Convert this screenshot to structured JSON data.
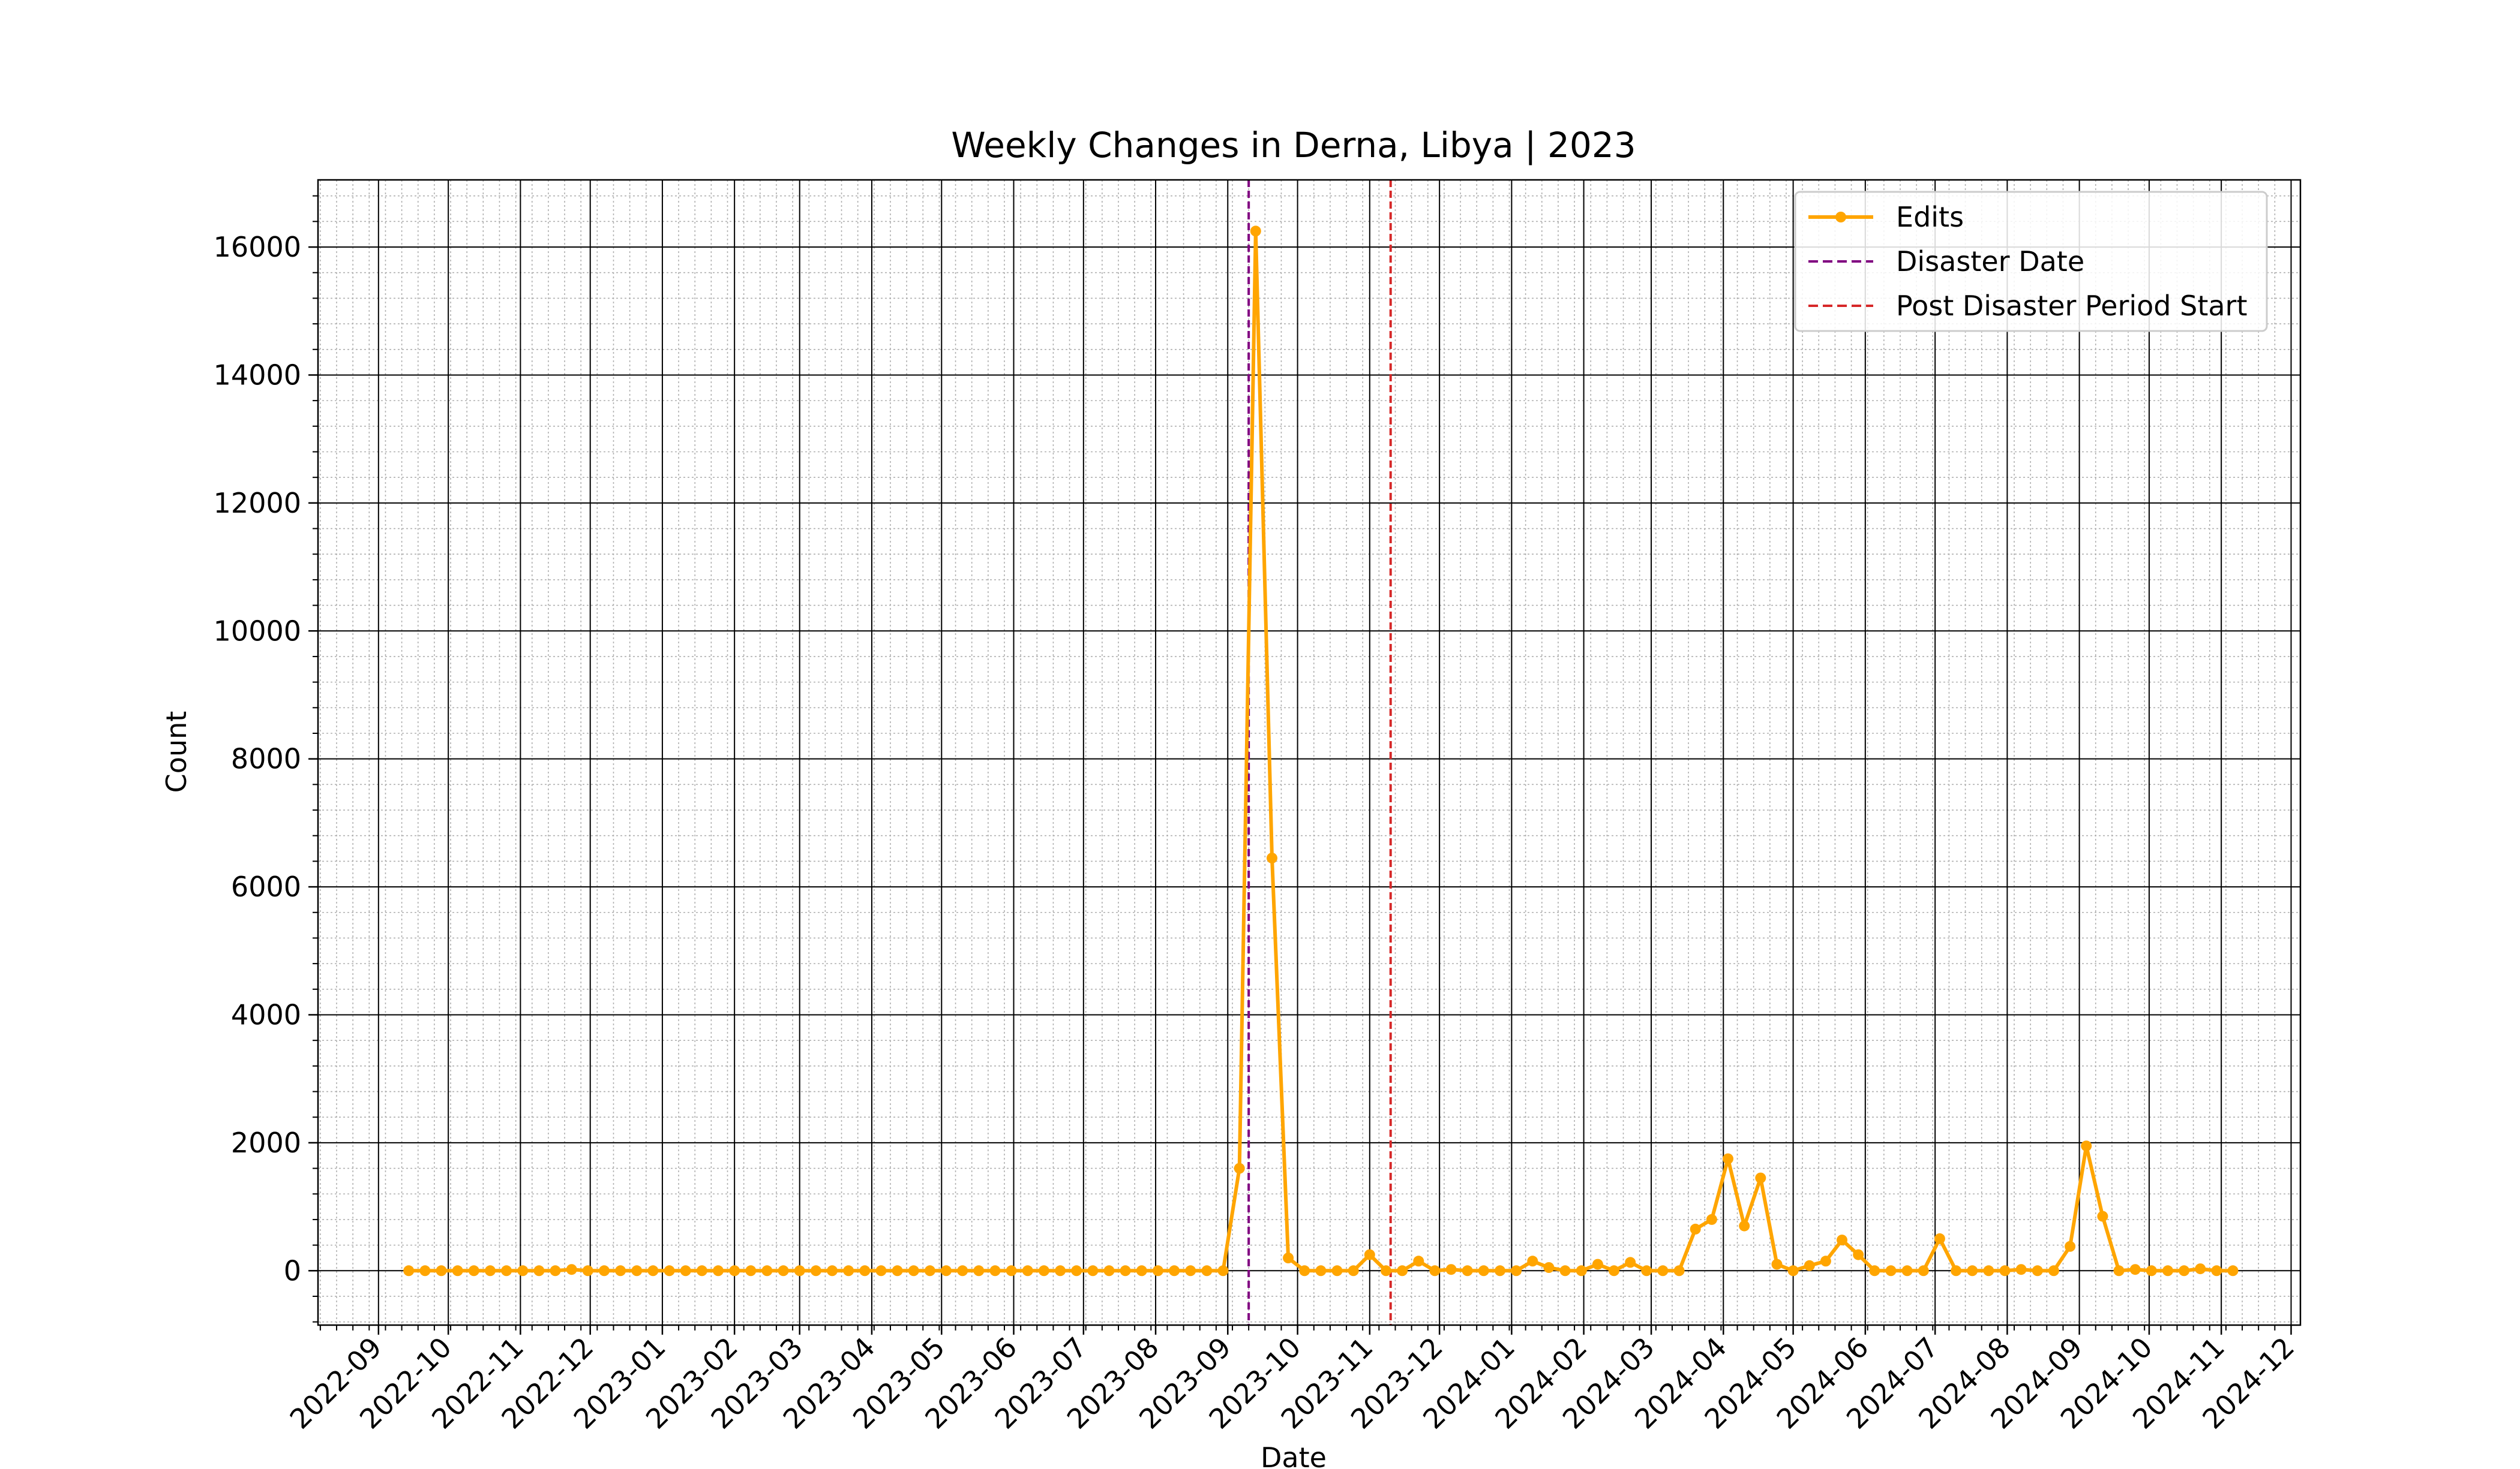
{
  "chart_data": {
    "type": "line",
    "title": "Weekly Changes in Derna, Libya | 2023",
    "xlabel": "Date",
    "ylabel": "Count",
    "x_type": "date",
    "xlim": [
      "2022-08-06",
      "2024-12-05"
    ],
    "ylim": [
      -850,
      17050
    ],
    "y_ticks": [
      0,
      2000,
      4000,
      6000,
      8000,
      10000,
      12000,
      14000,
      16000
    ],
    "x_ticks": [
      "2022-09",
      "2022-10",
      "2022-11",
      "2022-12",
      "2023-01",
      "2023-02",
      "2023-03",
      "2023-04",
      "2023-05",
      "2023-06",
      "2023-07",
      "2023-08",
      "2023-09",
      "2023-10",
      "2023-11",
      "2023-12",
      "2024-01",
      "2024-02",
      "2024-03",
      "2024-04",
      "2024-05",
      "2024-06",
      "2024-07",
      "2024-08",
      "2024-09",
      "2024-10",
      "2024-11",
      "2024-12"
    ],
    "grid": "major and minor",
    "legend_position": "upper right",
    "colors": {
      "edits": "#ffa500",
      "disaster": "#800080",
      "post_disaster": "#d62728",
      "major_grid": "#000000",
      "minor_grid": "#b0b0b0"
    },
    "series": [
      {
        "name": "Edits",
        "x": [
          "2022-09-14",
          "2022-09-21",
          "2022-09-28",
          "2022-10-05",
          "2022-10-12",
          "2022-10-19",
          "2022-10-26",
          "2022-11-02",
          "2022-11-09",
          "2022-11-16",
          "2022-11-23",
          "2022-11-30",
          "2022-12-07",
          "2022-12-14",
          "2022-12-21",
          "2022-12-28",
          "2023-01-04",
          "2023-01-11",
          "2023-01-18",
          "2023-01-25",
          "2023-02-01",
          "2023-02-08",
          "2023-02-15",
          "2023-02-22",
          "2023-03-01",
          "2023-03-08",
          "2023-03-15",
          "2023-03-22",
          "2023-03-29",
          "2023-04-05",
          "2023-04-12",
          "2023-04-19",
          "2023-04-26",
          "2023-05-03",
          "2023-05-10",
          "2023-05-17",
          "2023-05-24",
          "2023-05-31",
          "2023-06-07",
          "2023-06-14",
          "2023-06-21",
          "2023-06-28",
          "2023-07-05",
          "2023-07-12",
          "2023-07-19",
          "2023-07-26",
          "2023-08-02",
          "2023-08-09",
          "2023-08-16",
          "2023-08-23",
          "2023-08-30",
          "2023-09-06",
          "2023-09-13",
          "2023-09-20",
          "2023-09-27",
          "2023-10-04",
          "2023-10-11",
          "2023-10-18",
          "2023-10-25",
          "2023-11-01",
          "2023-11-08",
          "2023-11-15",
          "2023-11-22",
          "2023-11-29",
          "2023-12-06",
          "2023-12-13",
          "2023-12-20",
          "2023-12-27",
          "2024-01-03",
          "2024-01-10",
          "2024-01-17",
          "2024-01-24",
          "2024-01-31",
          "2024-02-07",
          "2024-02-14",
          "2024-02-21",
          "2024-02-28",
          "2024-03-06",
          "2024-03-13",
          "2024-03-20",
          "2024-03-27",
          "2024-04-03",
          "2024-04-10",
          "2024-04-17",
          "2024-04-24",
          "2024-05-01",
          "2024-05-08",
          "2024-05-15",
          "2024-05-22",
          "2024-05-29",
          "2024-06-05",
          "2024-06-12",
          "2024-06-19",
          "2024-06-26",
          "2024-07-03",
          "2024-07-10",
          "2024-07-17",
          "2024-07-24",
          "2024-07-31",
          "2024-08-07",
          "2024-08-14",
          "2024-08-21",
          "2024-08-28",
          "2024-09-04",
          "2024-09-11",
          "2024-09-18",
          "2024-09-25",
          "2024-10-02",
          "2024-10-09",
          "2024-10-16",
          "2024-10-23",
          "2024-10-30",
          "2024-11-06"
        ],
        "values": [
          0,
          0,
          0,
          0,
          0,
          0,
          0,
          0,
          0,
          0,
          20,
          0,
          0,
          0,
          0,
          0,
          0,
          0,
          0,
          0,
          0,
          0,
          0,
          0,
          0,
          0,
          0,
          0,
          0,
          0,
          0,
          0,
          0,
          0,
          0,
          0,
          0,
          0,
          0,
          0,
          0,
          0,
          0,
          0,
          0,
          0,
          0,
          0,
          0,
          0,
          0,
          1600,
          16250,
          6450,
          200,
          0,
          0,
          0,
          0,
          250,
          0,
          0,
          150,
          0,
          20,
          0,
          0,
          0,
          0,
          150,
          50,
          0,
          0,
          100,
          0,
          130,
          0,
          0,
          0,
          650,
          800,
          1750,
          700,
          1450,
          100,
          0,
          80,
          150,
          480,
          250,
          0,
          0,
          0,
          0,
          500,
          0,
          0,
          0,
          0,
          20,
          0,
          0,
          380,
          1950,
          850,
          0,
          20,
          0,
          0,
          0,
          30,
          0,
          0
        ]
      }
    ],
    "reference_lines": [
      {
        "name": "Disaster Date",
        "x": "2023-09-10",
        "style": "dashed"
      },
      {
        "name": "Post Disaster Period Start",
        "x": "2023-11-10",
        "style": "dashed"
      }
    ]
  }
}
